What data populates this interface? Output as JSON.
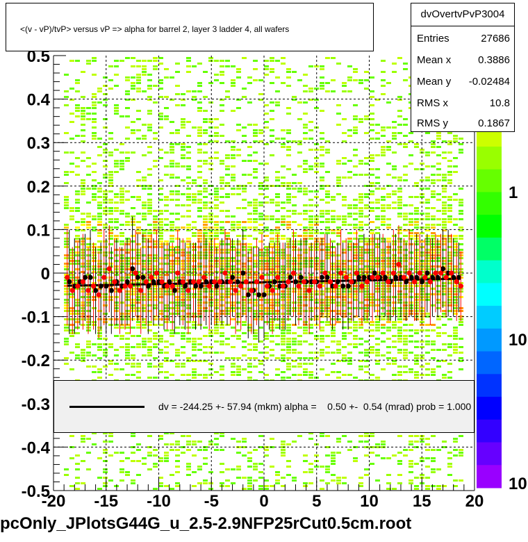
{
  "chart_data": {
    "type": "scatter",
    "title": "<(v - vP)/tvP> versus   vP => alpha for barrel 2, layer 3 ladder 4, all wafers",
    "file_title": "pcOnly_JPlotsG44G_u_2.5-2.9NFP25rCut0.5cm.root",
    "xlim": [
      -20,
      20
    ],
    "ylim": [
      -0.5,
      0.5
    ],
    "x_ticks": [
      "-20",
      "-15",
      "-10",
      "-5",
      "0",
      "5",
      "10",
      "15",
      "20"
    ],
    "y_ticks": [
      "-0.5",
      "-0.4",
      "-0.3",
      "-0.2",
      "-0.1",
      "0",
      "0.1",
      "0.2",
      "0.3",
      "0.4",
      "0.5"
    ],
    "colorbar_ticks": [
      "1",
      "10",
      "10"
    ],
    "grid": true,
    "stats": {
      "name": "dvOvertvPvP3004",
      "rows": [
        {
          "label": "Entries",
          "value": "27686"
        },
        {
          "label": "Mean x",
          "value": "0.3886"
        },
        {
          "label": "Mean y",
          "value": "-0.02484"
        },
        {
          "label": "RMS x",
          "value": "10.8"
        },
        {
          "label": "RMS y",
          "value": "0.1867"
        }
      ]
    },
    "fit_legend": "dv = -244.25 +- 57.94 (mkm) alpha =    0.50 +-  0.54 (mrad) prob = 1.000",
    "fit_line": {
      "x": [
        -18.7,
        18.7
      ],
      "y": [
        -0.029,
        -0.013
      ]
    },
    "series": [
      {
        "color": "#000000",
        "x": [
          -18.5,
          -18.0,
          -17.5,
          -17.0,
          -16.5,
          -16.0,
          -15.5,
          -15.0,
          -14.5,
          -14.0,
          -13.5,
          -13.0,
          -12.5,
          -12.0,
          -11.5,
          -11.0,
          -10.5,
          -10.0,
          -9.5,
          -9.0,
          -8.5,
          -8.0,
          -7.5,
          -7.0,
          -6.5,
          -6.0,
          -5.5,
          -5.0,
          -4.5,
          -4.0,
          -3.5,
          -3.0,
          -2.5,
          -2.0,
          -1.5,
          -1.0,
          -0.5,
          0.0,
          0.5,
          1.0,
          1.5,
          2.0,
          2.5,
          3.0,
          3.5,
          4.0,
          4.5,
          5.0,
          5.5,
          6.0,
          6.5,
          7.0,
          7.5,
          8.0,
          8.5,
          9.0,
          9.5,
          10.0,
          10.5,
          11.0,
          11.5,
          12.0,
          12.5,
          13.0,
          13.5,
          14.0,
          14.5,
          15.0,
          15.5,
          16.0,
          16.5,
          17.0,
          17.5,
          18.0,
          18.5
        ],
        "y": [
          -0.02,
          -0.03,
          -0.02,
          -0.01,
          -0.01,
          -0.04,
          -0.03,
          -0.03,
          -0.04,
          -0.02,
          -0.03,
          -0.02,
          0.01,
          -0.01,
          -0.01,
          -0.03,
          -0.02,
          -0.02,
          -0.03,
          -0.02,
          -0.04,
          -0.02,
          -0.03,
          -0.02,
          -0.03,
          -0.03,
          -0.02,
          -0.02,
          -0.03,
          -0.02,
          -0.02,
          -0.01,
          -0.02,
          0.0,
          -0.05,
          -0.04,
          -0.05,
          -0.05,
          -0.03,
          -0.02,
          -0.03,
          -0.03,
          -0.01,
          -0.02,
          -0.01,
          -0.02,
          -0.02,
          -0.02,
          -0.01,
          -0.01,
          -0.03,
          -0.02,
          -0.03,
          -0.03,
          -0.02,
          -0.01,
          -0.01,
          -0.01,
          0.0,
          -0.01,
          -0.01,
          -0.02,
          -0.01,
          -0.01,
          -0.02,
          -0.01,
          -0.01,
          -0.02,
          0.0,
          -0.01,
          -0.01,
          0.01,
          0.0,
          -0.01,
          -0.01
        ],
        "yerr": [
          0.12,
          0.11,
          0.1,
          0.1,
          0.11,
          0.1,
          0.1,
          0.11,
          0.1,
          0.1,
          0.09,
          0.1,
          0.12,
          0.1,
          0.1,
          0.11,
          0.1,
          0.1,
          0.1,
          0.09,
          0.1,
          0.1,
          0.1,
          0.09,
          0.1,
          0.1,
          0.1,
          0.1,
          0.09,
          0.1,
          0.1,
          0.09,
          0.1,
          0.1,
          0.1,
          0.1,
          0.11,
          0.1,
          0.1,
          0.09,
          0.1,
          0.1,
          0.09,
          0.1,
          0.09,
          0.1,
          0.09,
          0.1,
          0.09,
          0.1,
          0.1,
          0.09,
          0.1,
          0.1,
          0.09,
          0.09,
          0.1,
          0.09,
          0.09,
          0.1,
          0.09,
          0.09,
          0.1,
          0.09,
          0.09,
          0.09,
          0.1,
          0.09,
          0.09,
          0.09,
          0.09,
          0.09,
          0.1,
          0.09,
          0.08
        ]
      },
      {
        "color": "#ff0000",
        "x": [
          -18.7,
          -18.2,
          -17.7,
          -17.2,
          -16.7,
          -16.2,
          -15.7,
          -15.2,
          -14.7,
          -14.2,
          -13.7,
          -13.2,
          -12.7,
          -12.2,
          -11.7,
          -11.2,
          -10.7,
          -10.2,
          -9.7,
          -9.2,
          -8.7,
          -8.2,
          -7.7,
          -7.2,
          -6.7,
          -6.2,
          -5.7,
          -5.2,
          -4.7,
          -4.2,
          -3.7,
          -3.2,
          -2.7,
          -2.2,
          -1.7,
          -1.2,
          -0.7,
          -0.2,
          0.3,
          0.8,
          1.3,
          1.8,
          2.3,
          2.8,
          3.3,
          3.8,
          4.3,
          4.8,
          5.3,
          5.8,
          6.3,
          6.8,
          7.3,
          7.8,
          8.3,
          8.8,
          9.3,
          9.8,
          10.3,
          10.8,
          11.3,
          11.8,
          12.3,
          12.8,
          13.3,
          13.8,
          14.3,
          14.8,
          15.3,
          15.8,
          16.3,
          16.8,
          17.3,
          17.8,
          18.3,
          18.7
        ],
        "y": [
          -0.01,
          -0.04,
          -0.03,
          -0.02,
          -0.04,
          -0.03,
          -0.05,
          -0.01,
          0.01,
          -0.02,
          -0.04,
          -0.03,
          -0.03,
          0.0,
          -0.04,
          -0.02,
          -0.01,
          0.0,
          -0.02,
          -0.03,
          -0.03,
          0.0,
          -0.02,
          -0.04,
          -0.02,
          -0.02,
          -0.01,
          -0.03,
          -0.02,
          -0.02,
          0.0,
          -0.02,
          -0.04,
          -0.03,
          -0.02,
          -0.04,
          -0.02,
          -0.01,
          -0.03,
          -0.04,
          -0.01,
          -0.03,
          -0.02,
          0.0,
          -0.03,
          -0.02,
          -0.04,
          -0.02,
          -0.03,
          0.0,
          -0.02,
          -0.03,
          0.0,
          -0.01,
          -0.02,
          0.0,
          -0.03,
          -0.02,
          -0.01,
          -0.01,
          0.0,
          -0.02,
          0.0,
          0.02,
          -0.01,
          0.0,
          -0.02,
          0.0,
          -0.01,
          -0.02,
          0.0,
          0.0,
          -0.01,
          0.0,
          -0.02,
          -0.03
        ],
        "yerr": [
          0.11,
          0.1,
          0.1,
          0.11,
          0.1,
          0.1,
          0.1,
          0.11,
          0.1,
          0.1,
          0.1,
          0.1,
          0.11,
          0.1,
          0.1,
          0.1,
          0.1,
          0.1,
          0.09,
          0.1,
          0.1,
          0.1,
          0.1,
          0.1,
          0.09,
          0.1,
          0.1,
          0.1,
          0.1,
          0.09,
          0.1,
          0.1,
          0.1,
          0.1,
          0.09,
          0.1,
          0.1,
          0.1,
          0.09,
          0.1,
          0.1,
          0.1,
          0.09,
          0.1,
          0.09,
          0.1,
          0.1,
          0.09,
          0.1,
          0.09,
          0.1,
          0.09,
          0.1,
          0.09,
          0.09,
          0.1,
          0.09,
          0.09,
          0.1,
          0.09,
          0.09,
          0.09,
          0.1,
          0.09,
          0.09,
          0.1,
          0.09,
          0.09,
          0.09,
          0.1,
          0.09,
          0.09,
          0.09,
          0.09,
          0.09,
          0.08
        ]
      }
    ]
  }
}
